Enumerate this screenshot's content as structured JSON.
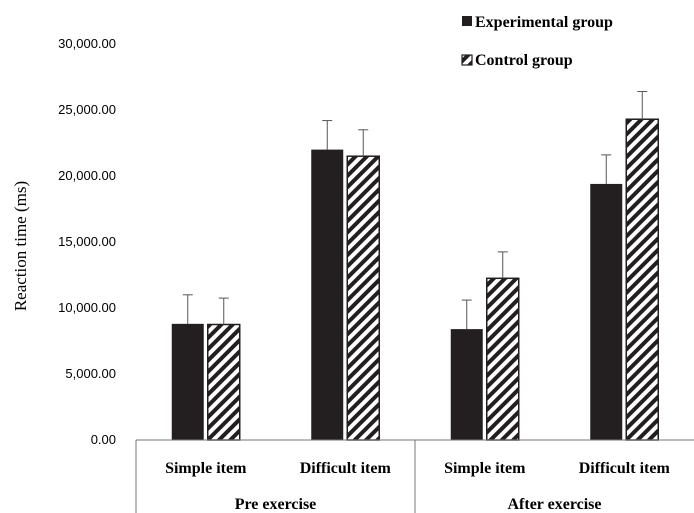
{
  "chart_data": {
    "type": "bar",
    "title": "",
    "xlabel": "",
    "ylabel": "Reaction time (ms)",
    "ylim": [
      0,
      30000
    ],
    "yticks": [
      0,
      5000,
      10000,
      15000,
      20000,
      25000,
      30000
    ],
    "ytick_labels": [
      "0.00",
      "5,000.00",
      "10,000.00",
      "15,000.00",
      "20,000.00",
      "25,000.00",
      "30,000.00"
    ],
    "categories": [
      "Simple item",
      "Difficult item",
      "Simple item",
      "Difficult item"
    ],
    "groups": [
      {
        "label": "Pre exercise",
        "categories": [
          0,
          1
        ]
      },
      {
        "label": "After exercise",
        "categories": [
          2,
          3
        ]
      }
    ],
    "series": [
      {
        "name": "Experimental group",
        "fill": "solid",
        "color": "#231f20",
        "values": [
          8800,
          22000,
          8400,
          19400
        ],
        "errors": [
          2200,
          2200,
          2200,
          2200
        ]
      },
      {
        "name": "Control group",
        "fill": "hatched",
        "color": "#231f20",
        "values": [
          8750,
          21500,
          12250,
          24300
        ],
        "errors": [
          2000,
          2000,
          2000,
          2100
        ]
      }
    ],
    "legend_position": "top-right",
    "grid": false
  }
}
